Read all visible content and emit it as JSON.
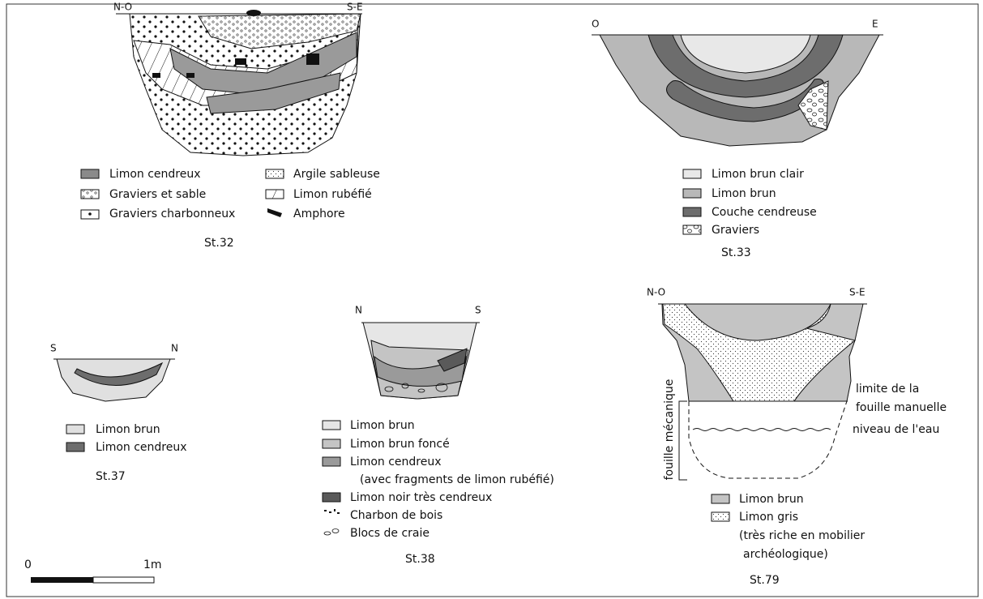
{
  "figures": [
    {
      "label": "St.32",
      "orientation": [
        "N-O",
        "S-E"
      ],
      "legend": [
        {
          "label": "Limon cendreux"
        },
        {
          "label": "Graviers et sable"
        },
        {
          "label": "Graviers charbonneux"
        },
        {
          "label": "Argile sableuse"
        },
        {
          "label": "Limon rubéfié"
        },
        {
          "label": "Amphore"
        }
      ]
    },
    {
      "label": "St.33",
      "orientation": [
        "O",
        "E"
      ],
      "legend": [
        {
          "label": "Limon brun clair"
        },
        {
          "label": "Limon brun"
        },
        {
          "label": "Couche cendreuse"
        },
        {
          "label": "Graviers"
        }
      ]
    },
    {
      "label": "St.37",
      "orientation": [
        "S",
        "N"
      ],
      "legend": [
        {
          "label": "Limon brun"
        },
        {
          "label": "Limon cendreux"
        }
      ]
    },
    {
      "label": "St.38",
      "orientation": [
        "N",
        "S"
      ],
      "legend": [
        {
          "label": "Limon brun"
        },
        {
          "label": "Limon brun foncé"
        },
        {
          "label": "Limon cendreux",
          "note": [
            "(avec fragments de limon rubéfié)"
          ]
        },
        {
          "label": "Limon noir très cendreux"
        },
        {
          "label": "Charbon de bois"
        },
        {
          "label": "Blocs de craie"
        }
      ]
    },
    {
      "label": "St.79",
      "orientation": [
        "N-O",
        "S-E"
      ],
      "legend": [
        {
          "label": "Limon brun"
        },
        {
          "label": "Limon gris",
          "note": [
            "(très riche en mobilier",
            "archéologique)"
          ]
        }
      ],
      "annotations": {
        "vertical": "fouille mécanique",
        "limit": [
          "limite de la",
          "fouille manuelle"
        ],
        "water": "niveau de l'eau"
      }
    }
  ],
  "scale": {
    "start": "0",
    "end": "1m"
  }
}
